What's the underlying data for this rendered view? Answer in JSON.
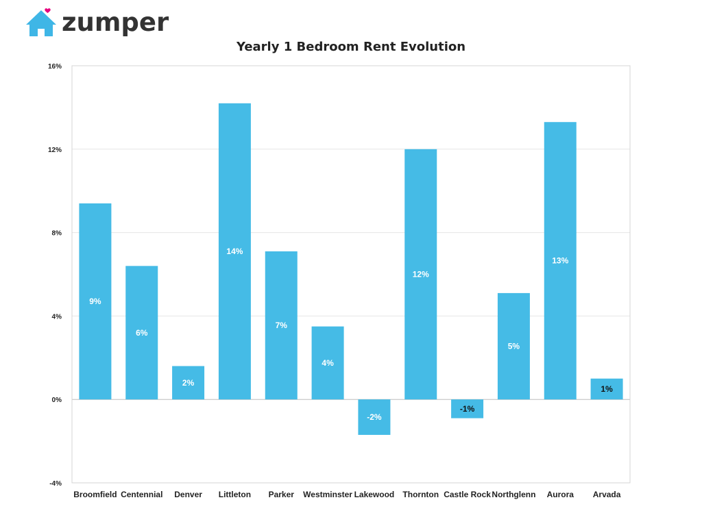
{
  "brand": {
    "name": "zumper",
    "icon": "house-heart-icon",
    "icon_color": "#3fb6e6",
    "heart_color": "#e6007e",
    "text_color": "#333333"
  },
  "chart_data": {
    "type": "bar",
    "title": "Yearly 1 Bedroom Rent Evolution",
    "xlabel": "",
    "ylabel": "",
    "categories": [
      "Broomfield",
      "Centennial",
      "Denver",
      "Littleton",
      "Parker",
      "Westminster",
      "Lakewood",
      "Thornton",
      "Castle Rock",
      "Northglenn",
      "Aurora",
      "Arvada"
    ],
    "values": [
      9.4,
      6.4,
      1.6,
      14.2,
      7.1,
      3.5,
      -1.7,
      12.0,
      -0.9,
      5.1,
      13.3,
      1.0
    ],
    "data_labels": [
      "9%",
      "6%",
      "2%",
      "14%",
      "7%",
      "4%",
      "-2%",
      "12%",
      "-1%",
      "5%",
      "13%",
      "1%"
    ],
    "ylim": [
      -4,
      16
    ],
    "yticks": [
      -4,
      0,
      4,
      8,
      12,
      16
    ],
    "ytick_labels": [
      "-4%",
      "0%",
      "4%",
      "8%",
      "12%",
      "16%"
    ],
    "grid": true,
    "bar_color": "#45bbe6",
    "inside_label_color": "#ffffff",
    "dark_label_color": "#111111"
  }
}
